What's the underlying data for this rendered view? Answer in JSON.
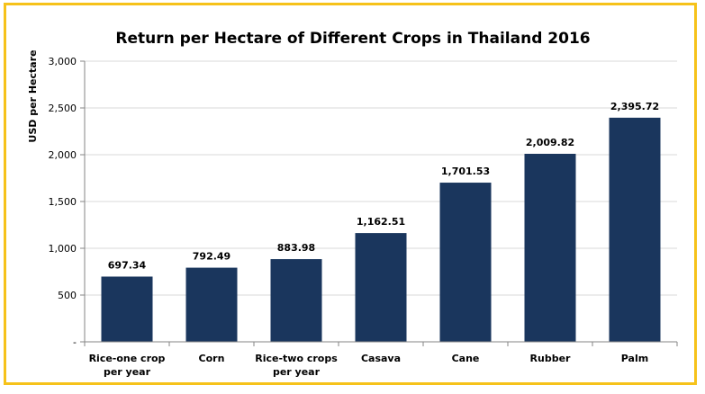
{
  "colors": {
    "frame": "#f6c21a",
    "bar": "#1a365d",
    "grid": "#d9d9d9",
    "axis": "#868686"
  },
  "chart_data": {
    "type": "bar",
    "title": "Return per Hectare of Different Crops in Thailand 2016",
    "xlabel": "",
    "ylabel": "USD per Hectare",
    "ylim": [
      0,
      3000
    ],
    "yticks": [
      0,
      500,
      1000,
      1500,
      2000,
      2500,
      3000
    ],
    "ytick_labels": [
      "-",
      "500",
      "1,000",
      "1,500",
      "2,000",
      "2,500",
      "3,000"
    ],
    "categories": [
      [
        "Rice-one crop",
        "per year"
      ],
      [
        "Corn"
      ],
      [
        "Rice-two crops",
        "per year"
      ],
      [
        "Casava"
      ],
      [
        "Cane"
      ],
      [
        "Rubber"
      ],
      [
        "Palm"
      ]
    ],
    "values": [
      697.34,
      792.49,
      883.98,
      1162.51,
      1701.53,
      2009.82,
      2395.72
    ],
    "value_labels": [
      "697.34",
      "792.49",
      "883.98",
      "1,162.51",
      "1,701.53",
      "2,009.82",
      "2,395.72"
    ],
    "grid": true,
    "legend": "none"
  }
}
